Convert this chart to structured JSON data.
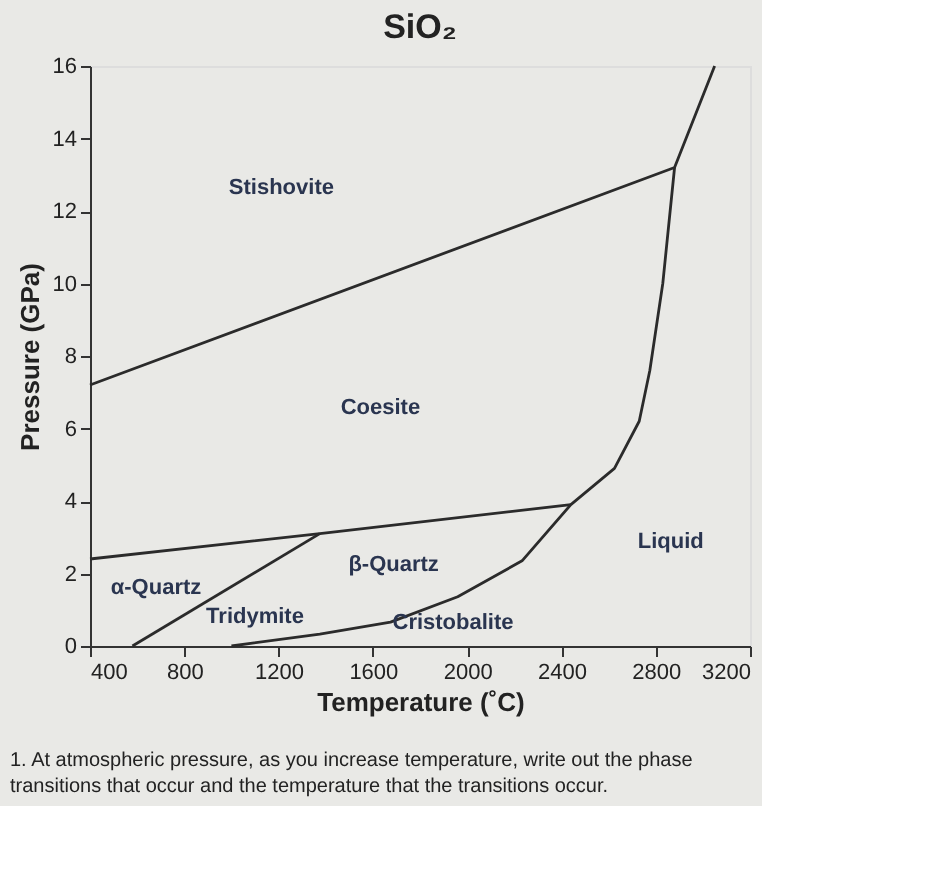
{
  "chart_data": {
    "type": "line",
    "title": "SiO₂",
    "xlabel": "Temperature (˚C)",
    "ylabel": "Pressure (GPa)",
    "xlim": [
      400,
      3200
    ],
    "xticks": [
      400,
      800,
      1200,
      1600,
      2000,
      2400,
      2800,
      3200
    ],
    "ylim": [
      0,
      16
    ],
    "yticks": [
      0,
      2,
      4,
      6,
      8,
      10,
      12,
      14,
      16
    ],
    "grid": false,
    "marker": "none",
    "line_style": "solid",
    "series": [
      {
        "color": "#2b2b2b",
        "x": [
          400,
          2880,
          3050
        ],
        "values": [
          7.2,
          13.2,
          16
        ]
      },
      {
        "color": "#2b2b2b",
        "x": [
          2880,
          2830,
          2775,
          2730,
          2625,
          2440,
          2233,
          1960,
          1675,
          1375,
          1000
        ],
        "values": [
          13.2,
          10,
          7.6,
          6.2,
          4.9,
          3.9,
          2.35,
          1.36,
          0.66,
          0.33,
          0
        ]
      },
      {
        "color": "#2b2b2b",
        "x": [
          400,
          1375,
          2440
        ],
        "values": [
          2.4,
          3.1,
          3.9
        ]
      },
      {
        "color": "#2b2b2b",
        "x": [
          580,
          1375
        ],
        "values": [
          0,
          3.1
        ]
      }
    ],
    "annotations": [
      "Stishovite",
      "Coesite",
      "β-Quartz",
      "α-Quartz",
      "Liquid",
      "Tridymite",
      "Cristobalite",
      "1. At atmospheric pressure, as you increase temperature, write out the phase transitions that occur and the temperature that the transitions occur."
    ]
  }
}
